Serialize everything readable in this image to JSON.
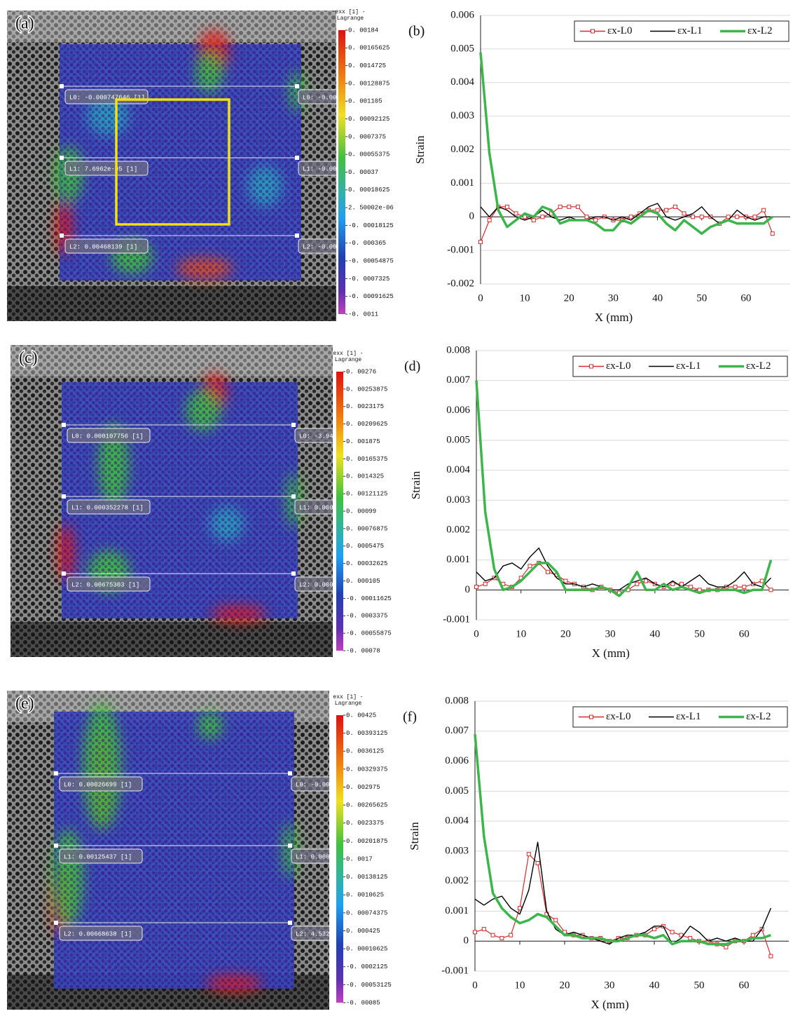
{
  "chart_data": [
    {
      "type": "line",
      "title": "(b)",
      "xlabel": "X (mm)",
      "ylabel": "Strain",
      "legend": "upper right",
      "xlim": [
        0,
        70
      ],
      "xticks": [
        0,
        10,
        20,
        30,
        40,
        50,
        60
      ],
      "ylim": [
        -0.002,
        0.006
      ],
      "yticks": [
        -0.002,
        -0.001,
        0,
        0.001,
        0.002,
        0.003,
        0.004,
        0.005,
        0.006
      ],
      "x": [
        0,
        2,
        4,
        6,
        8,
        10,
        12,
        14,
        16,
        18,
        20,
        22,
        24,
        26,
        28,
        30,
        32,
        34,
        36,
        38,
        40,
        42,
        44,
        46,
        48,
        50,
        52,
        54,
        56,
        58,
        60,
        62,
        64,
        66
      ],
      "series": [
        {
          "name": "εx-L0",
          "color": "#d22b2b",
          "marker": "square",
          "values": [
            -0.00075,
            -0.0001,
            0.0003,
            0.0003,
            0.0001,
            0,
            -0.0001,
            0,
            0.0001,
            0.0003,
            0.0003,
            0.0003,
            0,
            -0.0001,
            0,
            -0.0001,
            -0.0001,
            0,
            0.0001,
            0.0002,
            0.0002,
            0.0002,
            0.0003,
            0.0001,
            0,
            0,
            0,
            -0.0002,
            0,
            0,
            0,
            0,
            0.0002,
            -0.0005
          ]
        },
        {
          "name": "εx-L1",
          "color": "#000000",
          "values": [
            0.0003,
            0,
            0.0003,
            0.0002,
            0,
            -0.0001,
            0,
            0.0002,
            0,
            -0.0001,
            0,
            -0.0001,
            -0.0001,
            0,
            0,
            -0.0001,
            0,
            -0.0001,
            0.0001,
            0.0003,
            0.0004,
            0,
            -0.0001,
            0,
            0.0001,
            0.0003,
            0,
            -0.0002,
            -0.0001,
            0.0002,
            0,
            -0.0001,
            0,
            0
          ]
        },
        {
          "name": "εx-L2",
          "color": "#3cb54a",
          "values": [
            0.0049,
            0.0019,
            0.0002,
            -0.0003,
            -0.0001,
            0.0001,
            0,
            0.0003,
            0.0002,
            -0.0002,
            -0.0001,
            -0.0001,
            -0.0001,
            -0.0002,
            -0.0004,
            -0.0004,
            -0.0001,
            -0.0002,
            0,
            0.0002,
            0.0001,
            -0.0002,
            -0.0004,
            -0.0001,
            -0.0003,
            -0.0005,
            -0.0003,
            -0.0002,
            -0.0001,
            -0.0002,
            -0.0002,
            -0.0002,
            -0.0002,
            0
          ]
        }
      ]
    },
    {
      "type": "line",
      "title": "(d)",
      "xlabel": "X (mm)",
      "ylabel": "Strain",
      "legend": "upper right",
      "xlim": [
        0,
        70
      ],
      "xticks": [
        0,
        10,
        20,
        30,
        40,
        50,
        60
      ],
      "ylim": [
        -0.001,
        0.008
      ],
      "yticks": [
        -0.001,
        0,
        0.001,
        0.002,
        0.003,
        0.004,
        0.005,
        0.006,
        0.007,
        0.008
      ],
      "x": [
        0,
        2,
        4,
        6,
        8,
        10,
        12,
        14,
        16,
        18,
        20,
        22,
        24,
        26,
        28,
        30,
        32,
        34,
        36,
        38,
        40,
        42,
        44,
        46,
        48,
        50,
        52,
        54,
        56,
        58,
        60,
        62,
        64,
        66
      ],
      "series": [
        {
          "name": "εx-L0",
          "color": "#d22b2b",
          "marker": "square",
          "values": [
            0.0001,
            0.0002,
            0.0004,
            0.0002,
            0.0001,
            0.0004,
            0.0008,
            0.0009,
            0.0006,
            0.0005,
            0.0003,
            0.0002,
            0.0001,
            0,
            0.0001,
            0,
            -0.0001,
            0,
            0.0002,
            0.0003,
            0.0002,
            0.0001,
            0.0002,
            0.0002,
            0.0001,
            0,
            0,
            0,
            0.0001,
            0.0001,
            0.0001,
            0.0002,
            0.0003,
            0
          ]
        },
        {
          "name": "εx-L1",
          "color": "#000000",
          "values": [
            0.0006,
            0.0003,
            0.0004,
            0.0008,
            0.0009,
            0.0007,
            0.0011,
            0.0014,
            0.0008,
            0.0004,
            0.0002,
            0.0002,
            0.0001,
            0.0002,
            0.0001,
            0,
            0,
            0.0002,
            0.0003,
            0.0004,
            0.0002,
            0.0001,
            0.0003,
            0.0001,
            0.0003,
            0.0005,
            0.0002,
            0.0001,
            0.0001,
            0.0003,
            0.0006,
            0.0002,
            0.0001,
            0.0004
          ]
        },
        {
          "name": "εx-L2",
          "color": "#3cb54a",
          "values": [
            0.007,
            0.0026,
            0.0007,
            0,
            0.0001,
            0.0003,
            0.0006,
            0.0009,
            0.0009,
            0.0006,
            0,
            0,
            0,
            0,
            0.0001,
            0,
            -0.0002,
            0.0001,
            0.0006,
            0,
            0,
            0.0002,
            0,
            0.0001,
            0,
            -0.0001,
            0,
            0,
            0,
            0,
            -0.0001,
            0,
            0,
            0.001
          ]
        }
      ]
    },
    {
      "type": "line",
      "title": "(f)",
      "xlabel": "X (mm)",
      "ylabel": "Strain",
      "legend": "upper right",
      "xlim": [
        0,
        70
      ],
      "xticks": [
        0,
        10,
        20,
        30,
        40,
        50,
        60
      ],
      "ylim": [
        -0.001,
        0.008
      ],
      "yticks": [
        -0.001,
        0,
        0.001,
        0.002,
        0.003,
        0.004,
        0.005,
        0.006,
        0.007,
        0.008
      ],
      "x": [
        0,
        2,
        4,
        6,
        8,
        10,
        12,
        14,
        16,
        18,
        20,
        22,
        24,
        26,
        28,
        30,
        32,
        34,
        36,
        38,
        40,
        42,
        44,
        46,
        48,
        50,
        52,
        54,
        56,
        58,
        60,
        62,
        64,
        66
      ],
      "series": [
        {
          "name": "εx-L0",
          "color": "#d22b2b",
          "marker": "square",
          "values": [
            0.0003,
            0.0004,
            0.0002,
            0.0001,
            0.0002,
            0.0011,
            0.0029,
            0.0026,
            0.0009,
            0.0007,
            0.0003,
            0.0002,
            0.0002,
            0.0001,
            0.0001,
            0,
            0.0001,
            0.0001,
            0.0002,
            0.0002,
            0.0004,
            0.0005,
            0.0003,
            0.0002,
            0.0001,
            0,
            0,
            -0.0001,
            -0.0002,
            0,
            0,
            0.0002,
            0.0004,
            -0.0005
          ]
        },
        {
          "name": "εx-L1",
          "color": "#000000",
          "values": [
            0.0014,
            0.0012,
            0.0014,
            0.0015,
            0.0011,
            0.0009,
            0.0017,
            0.0033,
            0.001,
            0.0004,
            0.0002,
            0.0003,
            0.0002,
            0.0001,
            0,
            -0.0001,
            0.0001,
            0.0002,
            0.0002,
            0.0003,
            0.0005,
            0.0005,
            -0.0001,
            0.0001,
            0.0005,
            0.0003,
            0,
            0.0001,
            0,
            0.0001,
            0,
            0,
            0.0004,
            0.0011
          ]
        },
        {
          "name": "εx-L2",
          "color": "#3cb54a",
          "values": [
            0.0069,
            0.0035,
            0.0016,
            0.0011,
            0.0008,
            0.0006,
            0.0007,
            0.0009,
            0.0008,
            0.0005,
            0.0002,
            0.0002,
            0.0001,
            0.0001,
            0.0001,
            0,
            0,
            0.0001,
            0.0002,
            0.0002,
            0.0001,
            0.0002,
            -0.0001,
            0,
            0,
            0,
            -0.0001,
            -0.0001,
            -0.0001,
            0,
            0,
            0.0001,
            0.0001,
            0.0002
          ]
        }
      ]
    }
  ],
  "strain_maps": [
    {
      "panel_label": "(a)",
      "colorbar_title": "exx [1] -",
      "colorbar_subtitle": "Lagrange",
      "colorbar_ticks": [
        "0. 00184",
        "0. 00165625",
        "0. 0014725",
        "0. 00128875",
        "0. 001105",
        "0. 00092125",
        "0. 0007375",
        "0. 00055375",
        "0. 00037",
        "0. 00018625",
        "2. 50002e-06",
        "-0. 00018125",
        "-0. 000365",
        "-0. 00054875",
        "-0. 0007325",
        "-0. 00091625",
        "-0. 0011"
      ],
      "line_labels": [
        {
          "left": "L0: -0.000747646 [1]",
          "right": "L0: -0.00"
        },
        {
          "left": "L1: 7.6962e-05 [1]",
          "right": "L1: -0.00"
        },
        {
          "left": "L2: 0.00468139 [1]",
          "right": "L2: -0.00"
        }
      ]
    },
    {
      "panel_label": "(c)",
      "colorbar_title": "exx [1] -",
      "colorbar_subtitle": "Lagrange",
      "colorbar_ticks": [
        "0. 00276",
        "0. 00253875",
        "0. 0023175",
        "0. 00209625",
        "0. 001875",
        "0. 00165375",
        "0. 0014325",
        "0. 00121125",
        "0. 00099",
        "0. 00076875",
        "0. 0005475",
        "0. 00032625",
        "0. 000105",
        "-0. 00011625",
        "-0. 0003375",
        "-0. 00055875",
        "-0. 00078"
      ],
      "line_labels": [
        {
          "left": "L0: 0.000107756 [1]",
          "right": "L0: -3.94"
        },
        {
          "left": "L1: 0.000352278 [1]",
          "right": "L1: 0.000"
        },
        {
          "left": "L2: 0.00675303 [1]",
          "right": "L2: 0.000"
        }
      ]
    },
    {
      "panel_label": "(e)",
      "colorbar_title": "exx [1] -",
      "colorbar_subtitle": "Lagrange",
      "colorbar_ticks": [
        "0. 00425",
        "0. 00393125",
        "0. 0036125",
        "0. 00329375",
        "0. 002975",
        "0. 00265625",
        "0. 0023375",
        "0. 00201875",
        "0. 0017",
        "0. 00138125",
        "0. 0010625",
        "0. 00074375",
        "0. 000425",
        "0. 00010625",
        "-0. 0002125",
        "-0. 00053125",
        "-0. 00085"
      ],
      "line_labels": [
        {
          "left": "L0: 0.00026699 [1]",
          "right": "L0: -0.00"
        },
        {
          "left": "L1: 0.00125437 [1]",
          "right": "L1: 0.000"
        },
        {
          "left": "L2: 0.00668638 [1]",
          "right": "L2: 4.532"
        }
      ]
    }
  ]
}
